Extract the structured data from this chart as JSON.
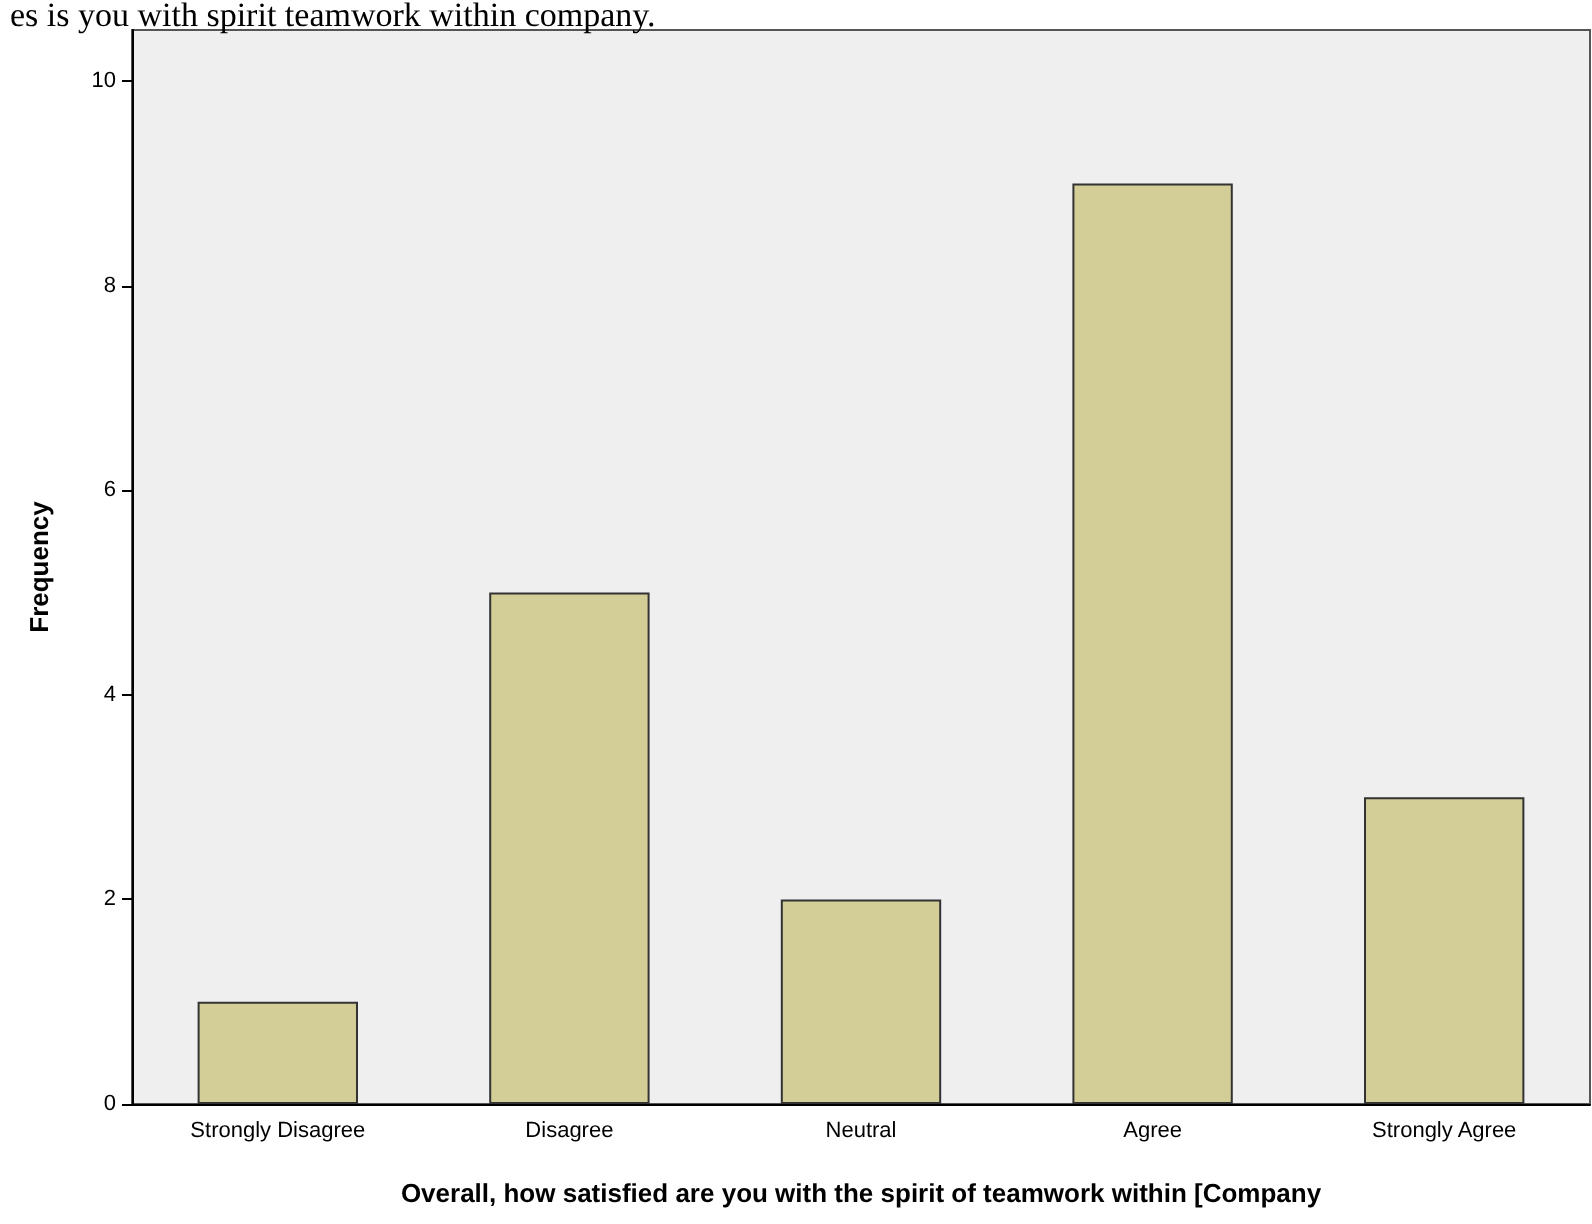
{
  "chart_data": {
    "type": "bar",
    "title": "es is you with spirit teamwork within company.",
    "xlabel": "Overall, how satisfied are you with the spirit of teamwork within [Company",
    "ylabel": "Frequency",
    "categories": [
      "Strongly Disagree",
      "Disagree",
      "Neutral",
      "Agree",
      "Strongly Agree"
    ],
    "values": [
      1,
      5,
      2,
      9,
      3
    ],
    "color": "#d3ce97",
    "ylim": [
      0,
      10.5
    ],
    "yticks": [
      0,
      2,
      4,
      6,
      8,
      10
    ],
    "grid": false
  }
}
